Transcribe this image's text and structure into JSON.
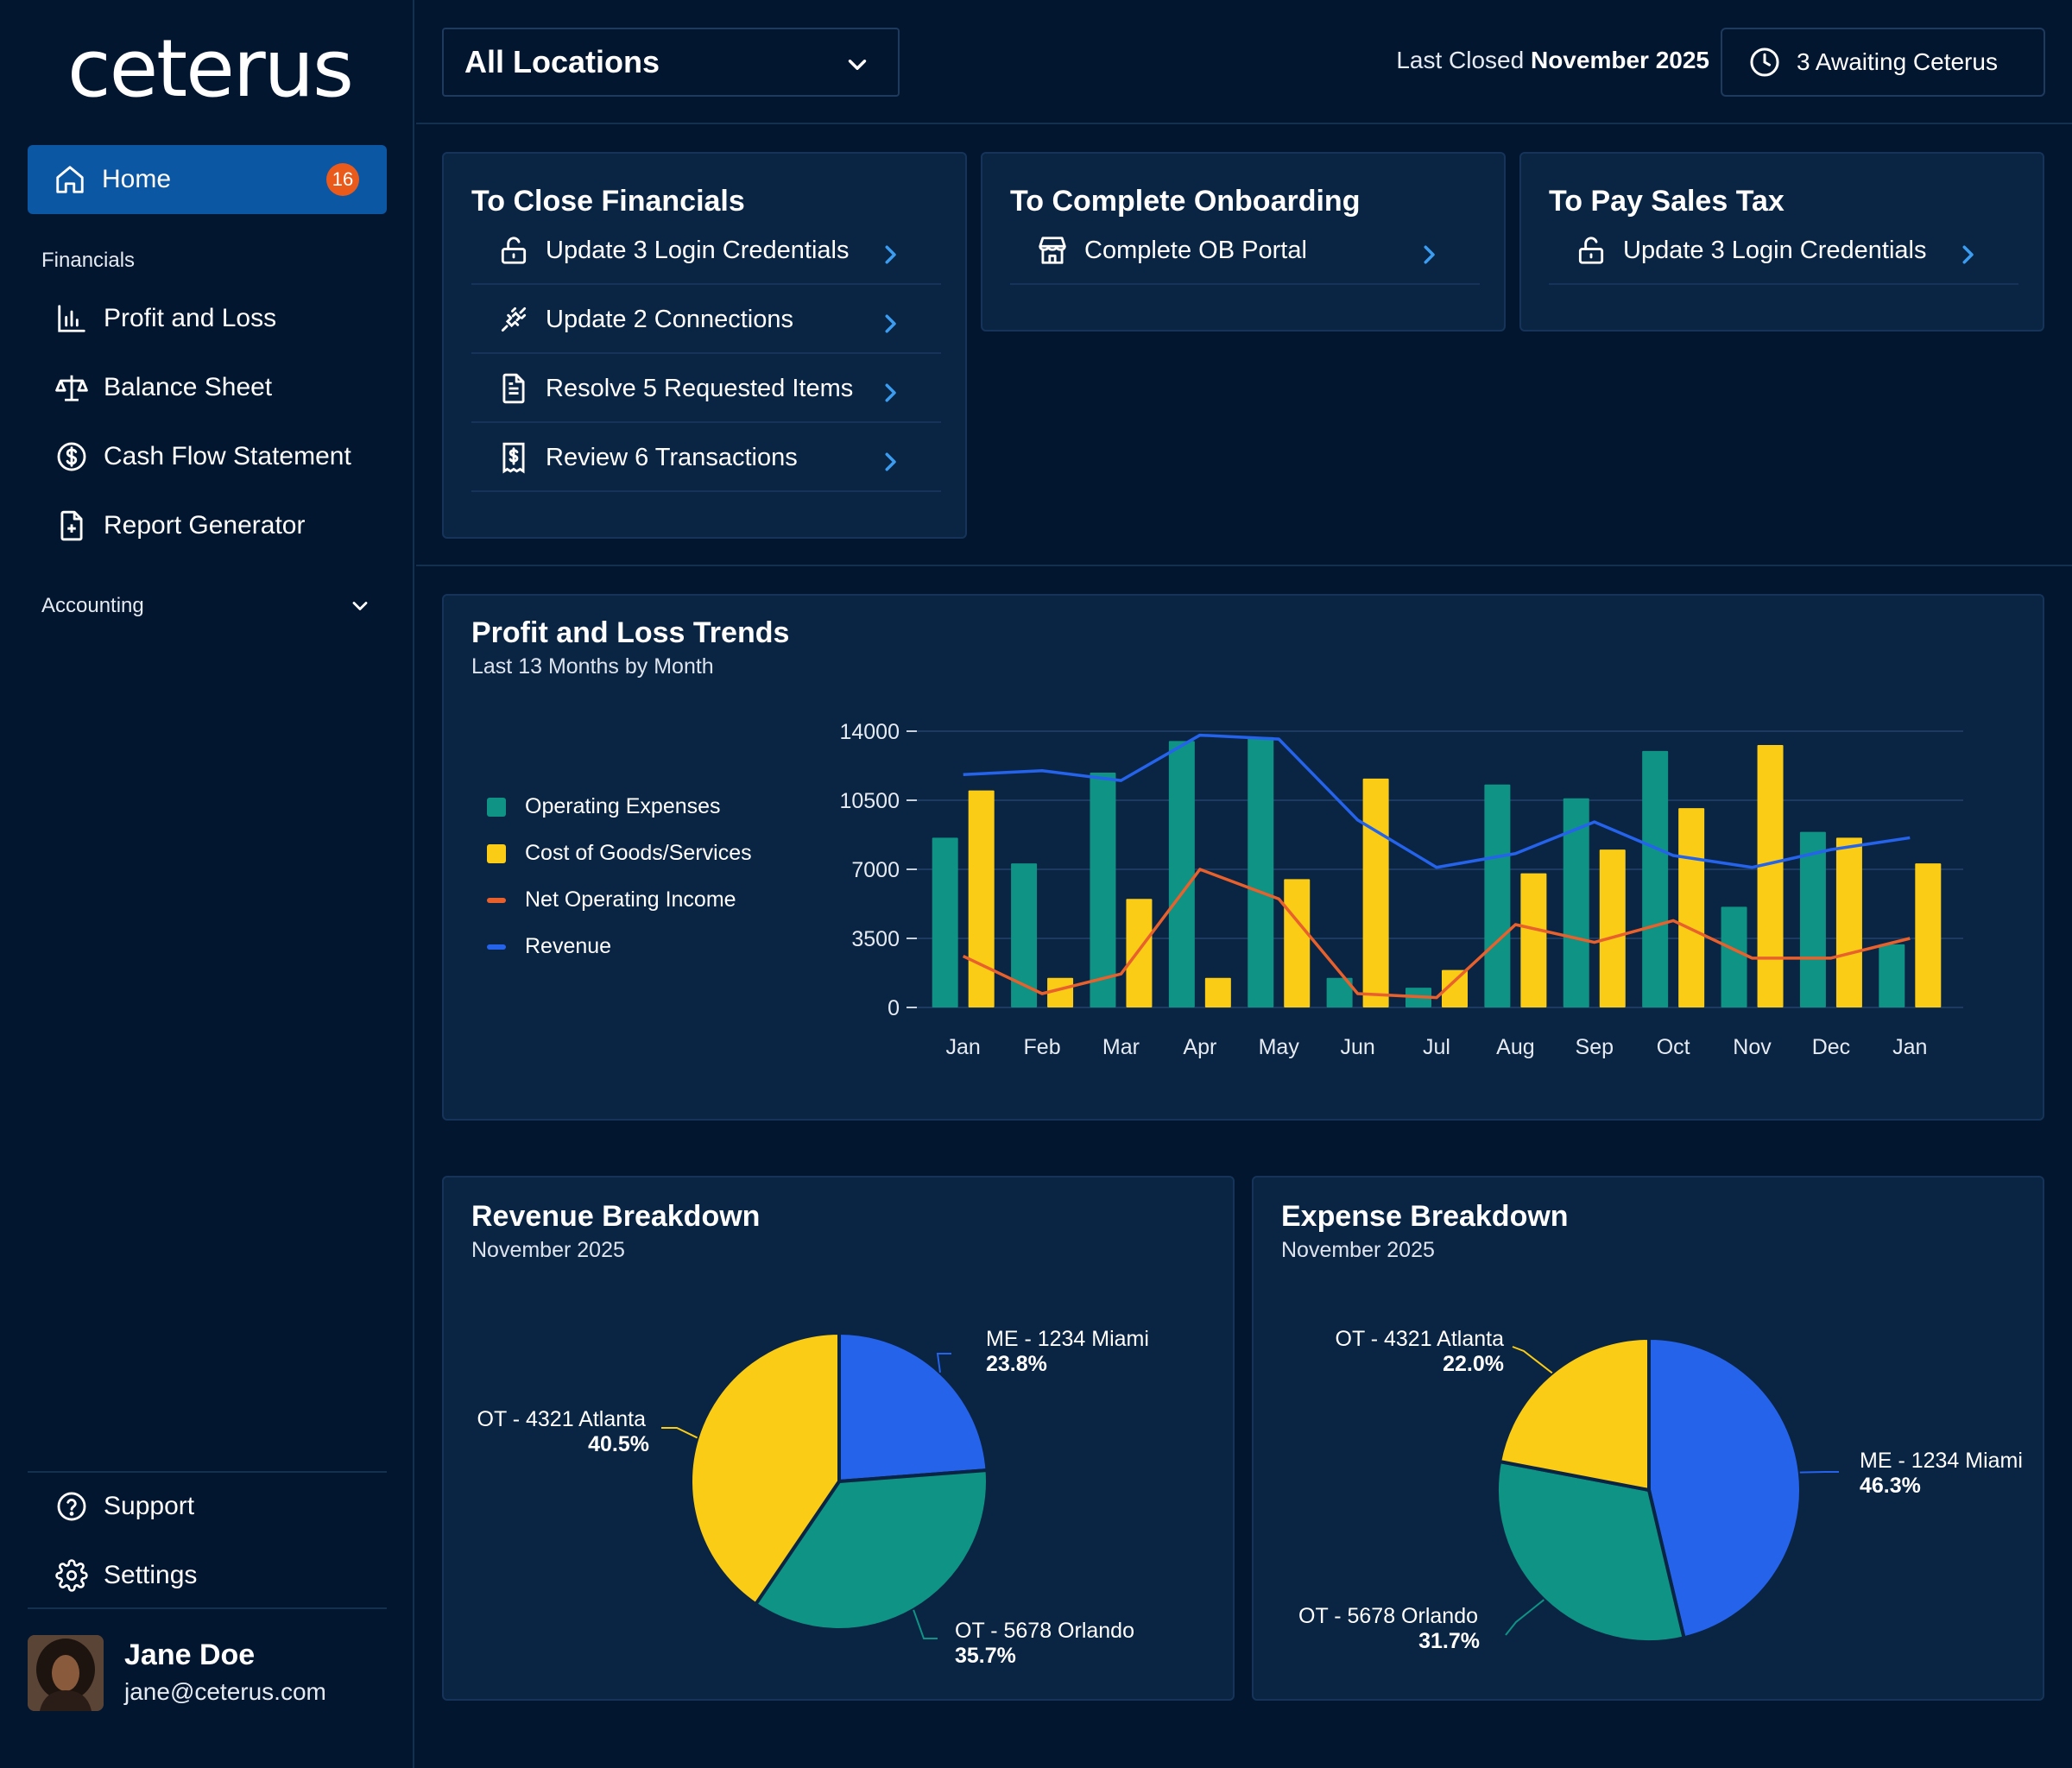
{
  "app": {
    "logo": "ceterus"
  },
  "sidebar": {
    "home": {
      "label": "Home",
      "badge": "16"
    },
    "financials_label": "Financials",
    "financials": [
      {
        "label": "Profit and Loss",
        "icon": "bar-chart-icon"
      },
      {
        "label": "Balance Sheet",
        "icon": "scale-icon"
      },
      {
        "label": "Cash Flow Statement",
        "icon": "dollar-circle-icon"
      },
      {
        "label": "Report Generator",
        "icon": "file-plus-icon"
      }
    ],
    "accounting_label": "Accounting",
    "support_label": "Support",
    "settings_label": "Settings",
    "user": {
      "name": "Jane Doe",
      "email": "jane@ceterus.com"
    }
  },
  "header": {
    "location_select": "All Locations",
    "last_closed_prefix": "Last Closed ",
    "last_closed_value": "November 2025",
    "awaiting_label": "3 Awaiting Ceterus"
  },
  "tasks": {
    "close_financials": {
      "title": "To Close Financials",
      "items": [
        {
          "label": "Update 3 Login Credentials",
          "icon": "lock-open-icon"
        },
        {
          "label": "Update 2 Connections",
          "icon": "plug-icon"
        },
        {
          "label": "Resolve 5 Requested Items",
          "icon": "document-icon"
        },
        {
          "label": "Review 6 Transactions",
          "icon": "receipt-dollar-icon"
        }
      ]
    },
    "onboarding": {
      "title": "To Complete Onboarding",
      "items": [
        {
          "label": "Complete OB Portal",
          "icon": "store-icon"
        }
      ]
    },
    "sales_tax": {
      "title": "To Pay Sales Tax",
      "items": [
        {
          "label": "Update 3 Login Credentials",
          "icon": "lock-open-icon"
        }
      ]
    }
  },
  "colors": {
    "operating_expenses": "#0e9384",
    "cogs": "#facc15",
    "net_operating_income": "#e8612c",
    "revenue": "#2563eb"
  },
  "chart_data": [
    {
      "type": "bar",
      "title": "Profit and Loss Trends",
      "subtitle": "Last 13 Months by Month",
      "categories": [
        "Jan",
        "Feb",
        "Mar",
        "Apr",
        "May",
        "Jun",
        "Jul",
        "Aug",
        "Sep",
        "Oct",
        "Nov",
        "Dec",
        "Jan"
      ],
      "yticks": [
        "0",
        "3500",
        "7000",
        "10500",
        "14000"
      ],
      "ylim": [
        0,
        14000
      ],
      "legend_position": "left",
      "series": [
        {
          "name": "Operating Expenses",
          "kind": "bar",
          "values": [
            8600,
            7300,
            11900,
            13500,
            13700,
            1500,
            1000,
            11300,
            10600,
            13000,
            5100,
            8900,
            3200
          ]
        },
        {
          "name": "Cost of Goods/Services",
          "kind": "bar",
          "values": [
            11000,
            1500,
            5500,
            1500,
            6500,
            11600,
            1900,
            6800,
            8000,
            10100,
            13300,
            8600,
            7300
          ]
        },
        {
          "name": "Net Operating Income",
          "kind": "line",
          "values": [
            2600,
            700,
            1700,
            7000,
            5500,
            700,
            500,
            4200,
            3300,
            4400,
            2500,
            2500,
            3500
          ]
        },
        {
          "name": "Revenue",
          "kind": "line",
          "values": [
            11800,
            12000,
            11500,
            13800,
            13600,
            9500,
            7100,
            7800,
            9400,
            7700,
            7100,
            8000,
            8600
          ]
        }
      ]
    },
    {
      "type": "pie",
      "title": "Revenue Breakdown",
      "subtitle": "November 2025",
      "slices": [
        {
          "label": "ME - 1234 Miami",
          "pct_label": "23.8%",
          "value": 23.8,
          "color": "#2563eb"
        },
        {
          "label": "OT - 5678 Orlando",
          "pct_label": "35.7%",
          "value": 35.7,
          "color": "#0e9384"
        },
        {
          "label": "OT - 4321 Atlanta",
          "pct_label": "40.5%",
          "value": 40.5,
          "color": "#facc15"
        }
      ]
    },
    {
      "type": "pie",
      "title": "Expense Breakdown",
      "subtitle": "November 2025",
      "slices": [
        {
          "label": "ME - 1234 Miami",
          "pct_label": "46.3%",
          "value": 46.3,
          "color": "#2563eb"
        },
        {
          "label": "OT - 5678 Orlando",
          "pct_label": "31.7%",
          "value": 31.7,
          "color": "#0e9384"
        },
        {
          "label": "OT - 4321 Atlanta",
          "pct_label": "22.0%",
          "value": 22.0,
          "color": "#facc15"
        }
      ]
    }
  ]
}
